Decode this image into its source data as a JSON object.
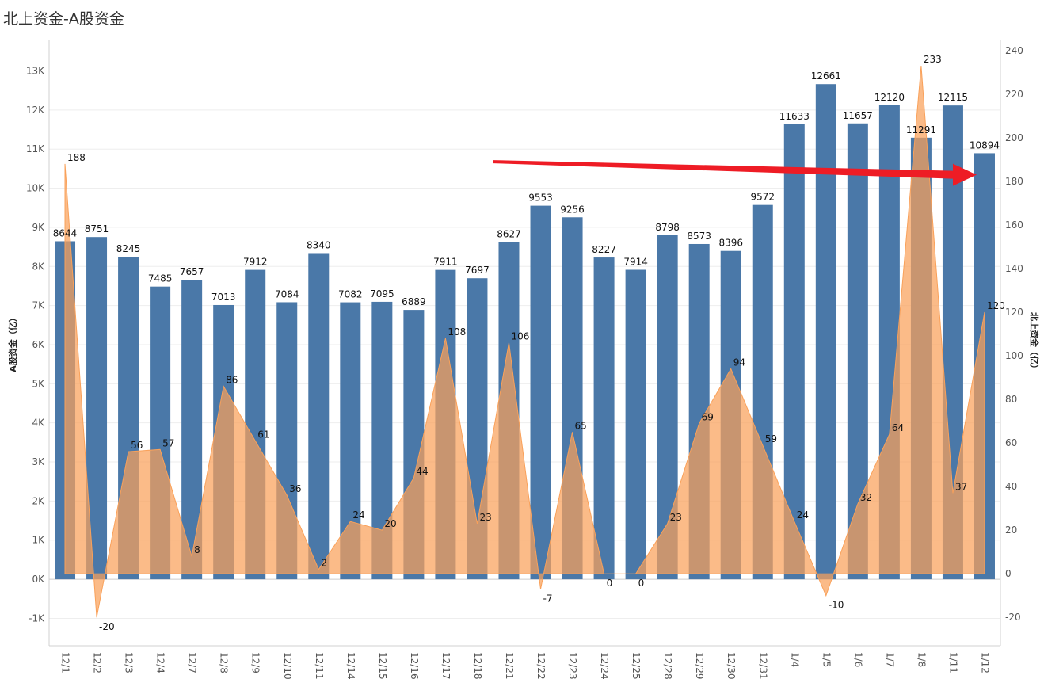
{
  "chart_data": {
    "type": "bar",
    "title": "北上资金-A股资金",
    "categories": [
      "12/1",
      "12/2",
      "12/3",
      "12/4",
      "12/7",
      "12/8",
      "12/9",
      "12/10",
      "12/11",
      "12/14",
      "12/15",
      "12/16",
      "12/17",
      "12/18",
      "12/21",
      "12/22",
      "12/23",
      "12/24",
      "12/25",
      "12/28",
      "12/29",
      "12/30",
      "12/31",
      "1/4",
      "1/5",
      "1/6",
      "1/7",
      "1/8",
      "1/11",
      "1/12"
    ],
    "series": [
      {
        "name": "A股资金（亿）",
        "type": "bar",
        "axis": "left",
        "color": "#4a78a8",
        "values": [
          8644,
          8751,
          8245,
          7485,
          7657,
          7013,
          7912,
          7084,
          8340,
          7082,
          7095,
          6889,
          7911,
          7697,
          8627,
          9553,
          9256,
          8227,
          7914,
          8798,
          8573,
          8396,
          9572,
          11633,
          12661,
          11657,
          12120,
          11291,
          12115,
          10894
        ]
      },
      {
        "name": "北上资金（亿）",
        "type": "area",
        "axis": "right",
        "color": "#f9a15a",
        "values": [
          188,
          -20,
          56,
          57,
          8,
          86,
          61,
          36,
          2,
          24,
          20,
          44,
          108,
          23,
          106,
          -7,
          65,
          0,
          0,
          23,
          69,
          94,
          59,
          24,
          -10,
          32,
          64,
          233,
          37,
          120
        ]
      }
    ],
    "y_left": {
      "label": "A股资金（亿）",
      "range": [
        -1700,
        13800
      ],
      "ticks": [
        -1000,
        0,
        1000,
        2000,
        3000,
        4000,
        5000,
        6000,
        7000,
        8000,
        9000,
        10000,
        11000,
        12000,
        13000
      ],
      "tick_labels": [
        "-1K",
        "0K",
        "1K",
        "2K",
        "3K",
        "4K",
        "5K",
        "6K",
        "7K",
        "8K",
        "9K",
        "10K",
        "11K",
        "12K",
        "13K"
      ]
    },
    "y_right": {
      "label": "北上资金（亿）",
      "range": [
        -33,
        245
      ],
      "ticks": [
        -20,
        0,
        20,
        40,
        60,
        80,
        100,
        120,
        140,
        160,
        180,
        200,
        220,
        240
      ],
      "tick_labels": [
        "-20",
        "0",
        "20",
        "40",
        "60",
        "80",
        "100",
        "120",
        "140",
        "160",
        "180",
        "200",
        "220",
        "240"
      ]
    },
    "grid": true,
    "annotation": {
      "type": "arrow",
      "color": "#ee1c25",
      "from": {
        "category": "12/22",
        "y_right": 189
      },
      "to": {
        "category": "1/12",
        "y_right": 183
      }
    }
  }
}
